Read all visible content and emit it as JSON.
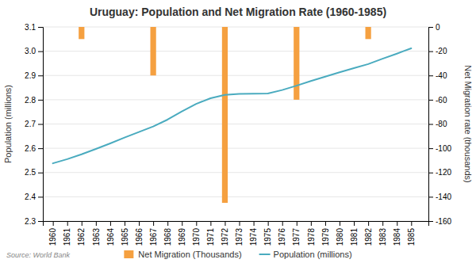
{
  "chart_data": {
    "type": "bar",
    "title": "Uruguay: Population and Net Migration Rate (1960-1985)",
    "source": "Source: World Bank",
    "x_label": null,
    "y_label": "Population (millions)",
    "y2_label": "Net Migration rate (thousands)",
    "series": [
      {
        "name": "Net Migration (Thousands)",
        "type": "bar",
        "axis": "y2",
        "color": "#F5A040",
        "x": [
          1962,
          1967,
          1972,
          1977,
          1982
        ],
        "values": [
          -10,
          -40,
          -145,
          -60,
          -10
        ]
      },
      {
        "name": "Population (millions)",
        "type": "line",
        "color": "#4AABBF",
        "x": [
          1960,
          1961,
          1962,
          1963,
          1964,
          1965,
          1966,
          1967,
          1968,
          1969,
          1970,
          1971,
          1972,
          1973,
          1974,
          1975,
          1976,
          1977,
          1978,
          1979,
          1980,
          1981,
          1982,
          1983,
          1984,
          1985
        ],
        "values": [
          2.538,
          2.555,
          2.575,
          2.597,
          2.62,
          2.644,
          2.667,
          2.69,
          2.718,
          2.752,
          2.783,
          2.806,
          2.82,
          2.824,
          2.825,
          2.826,
          2.84,
          2.858,
          2.877,
          2.895,
          2.913,
          2.93,
          2.947,
          2.969,
          2.99,
          3.012
        ]
      }
    ],
    "xlim": [
      1959.3,
      1986.2
    ],
    "xticks": [
      1960,
      1961,
      1962,
      1963,
      1964,
      1965,
      1966,
      1967,
      1968,
      1969,
      1970,
      1971,
      1972,
      1973,
      1974,
      1975,
      1976,
      1977,
      1978,
      1979,
      1980,
      1981,
      1982,
      1983,
      1984,
      1985
    ],
    "ylim": [
      2.3,
      3.1
    ],
    "yticks": [
      2.3,
      2.4,
      2.5,
      2.6,
      2.7,
      2.8,
      2.9,
      {
        "value": 3.0,
        "label": "3.0"
      },
      3.1
    ],
    "y2lim": [
      -160,
      0
    ],
    "y2ticks": [
      0,
      -20,
      -40,
      -60,
      -80,
      -100,
      -120,
      -140,
      -160
    ],
    "grid": true,
    "legend": "bottom"
  }
}
